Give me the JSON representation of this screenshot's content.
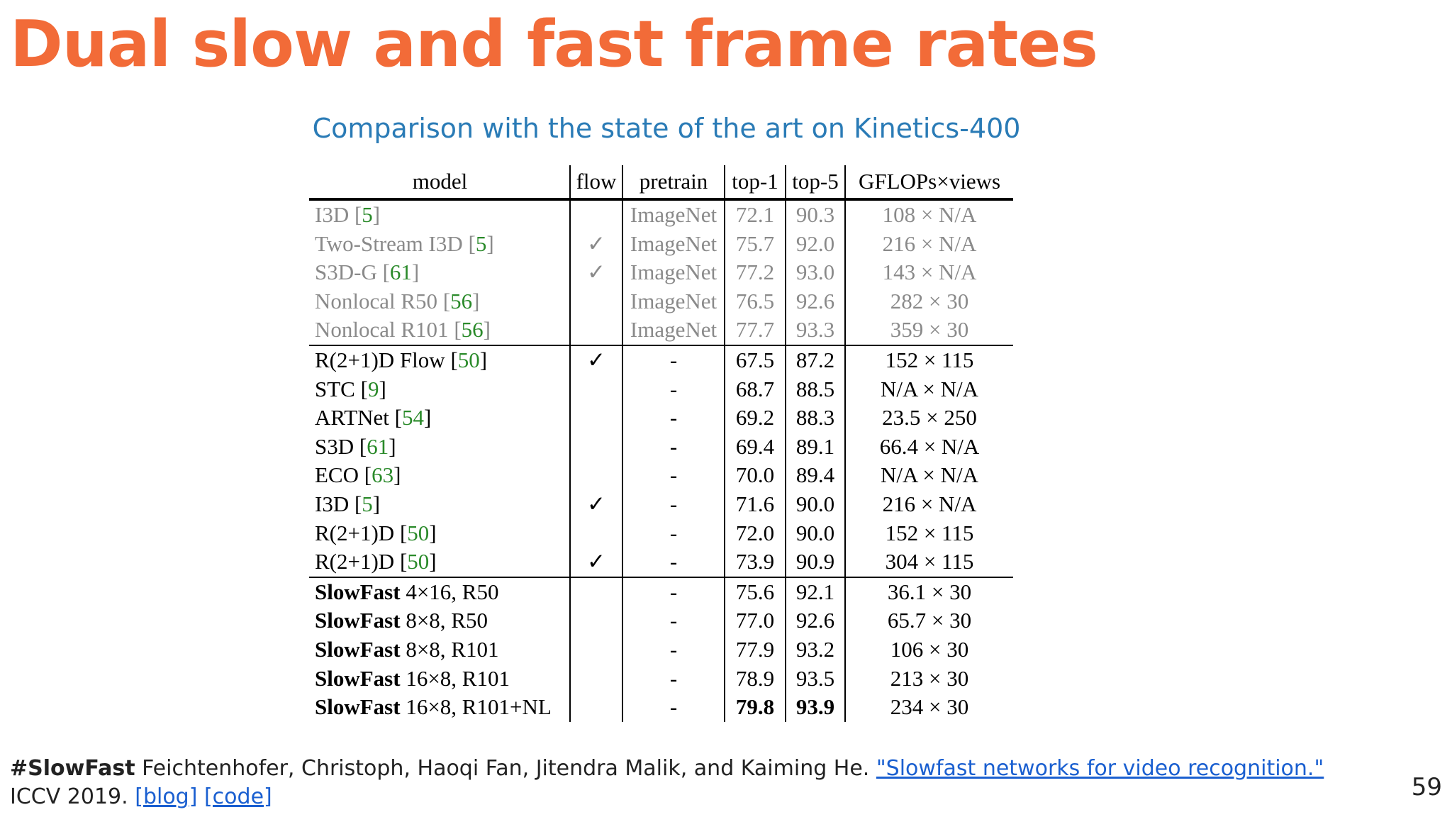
{
  "slide": {
    "title": "Dual slow and fast frame rates",
    "subtitle": "Comparison with the state of the art on Kinetics-400",
    "page_number": "59"
  },
  "table": {
    "headers": [
      "model",
      "flow",
      "pretrain",
      "top-1",
      "top-5",
      "GFLOPs×views"
    ],
    "rows": [
      {
        "name": "I3D",
        "ref": "5",
        "flow": "",
        "pretrain": "ImageNet",
        "top1": "72.1",
        "top5": "90.3",
        "gflops": "108 × N/A"
      },
      {
        "name": "Two-Stream I3D",
        "ref": "5",
        "flow": "✓",
        "pretrain": "ImageNet",
        "top1": "75.7",
        "top5": "92.0",
        "gflops": "216 × N/A"
      },
      {
        "name": "S3D-G",
        "ref": "61",
        "flow": "✓",
        "pretrain": "ImageNet",
        "top1": "77.2",
        "top5": "93.0",
        "gflops": "143 × N/A"
      },
      {
        "name": "Nonlocal R50",
        "ref": "56",
        "flow": "",
        "pretrain": "ImageNet",
        "top1": "76.5",
        "top5": "92.6",
        "gflops": "282 × 30"
      },
      {
        "name": "Nonlocal R101",
        "ref": "56",
        "flow": "",
        "pretrain": "ImageNet",
        "top1": "77.7",
        "top5": "93.3",
        "gflops": "359 × 30"
      },
      {
        "name": "R(2+1)D Flow",
        "ref": "50",
        "flow": "✓",
        "pretrain": "-",
        "top1": "67.5",
        "top5": "87.2",
        "gflops": "152 × 115"
      },
      {
        "name": "STC",
        "ref": "9",
        "flow": "",
        "pretrain": "-",
        "top1": "68.7",
        "top5": "88.5",
        "gflops": "N/A × N/A"
      },
      {
        "name": "ARTNet",
        "ref": "54",
        "flow": "",
        "pretrain": "-",
        "top1": "69.2",
        "top5": "88.3",
        "gflops": "23.5 × 250"
      },
      {
        "name": "S3D",
        "ref": "61",
        "flow": "",
        "pretrain": "-",
        "top1": "69.4",
        "top5": "89.1",
        "gflops": "66.4 × N/A"
      },
      {
        "name": "ECO",
        "ref": "63",
        "flow": "",
        "pretrain": "-",
        "top1": "70.0",
        "top5": "89.4",
        "gflops": "N/A × N/A"
      },
      {
        "name": "I3D",
        "ref": "5",
        "flow": "✓",
        "pretrain": "-",
        "top1": "71.6",
        "top5": "90.0",
        "gflops": "216 × N/A"
      },
      {
        "name": "R(2+1)D",
        "ref": "50",
        "flow": "",
        "pretrain": "-",
        "top1": "72.0",
        "top5": "90.0",
        "gflops": "152 × 115"
      },
      {
        "name": "R(2+1)D",
        "ref": "50",
        "flow": "✓",
        "pretrain": "-",
        "top1": "73.9",
        "top5": "90.9",
        "gflops": "304 × 115"
      },
      {
        "name": "SlowFast",
        "config": "4×16, R50",
        "flow": "",
        "pretrain": "-",
        "top1": "75.6",
        "top5": "92.1",
        "gflops": "36.1 × 30"
      },
      {
        "name": "SlowFast",
        "config": "8×8, R50",
        "flow": "",
        "pretrain": "-",
        "top1": "77.0",
        "top5": "92.6",
        "gflops": "65.7 × 30"
      },
      {
        "name": "SlowFast",
        "config": "8×8, R101",
        "flow": "",
        "pretrain": "-",
        "top1": "77.9",
        "top5": "93.2",
        "gflops": "106 × 30"
      },
      {
        "name": "SlowFast",
        "config": "16×8, R101",
        "flow": "",
        "pretrain": "-",
        "top1": "78.9",
        "top5": "93.5",
        "gflops": "213 × 30"
      },
      {
        "name": "SlowFast",
        "config": "16×8, R101+NL",
        "flow": "",
        "pretrain": "-",
        "top1": "79.8",
        "top5": "93.9",
        "gflops": "234 × 30"
      }
    ]
  },
  "footer": {
    "tag": "#SlowFast",
    "authors": " Feichtenhofer, Christoph, Haoqi Fan, Jitendra Malik, and Kaiming He. ",
    "paper_link": "\"Slowfast networks for video recognition.\"",
    "venue": "ICCV 2019. ",
    "blog_link": "[blog]",
    "code_link": "[code]"
  }
}
